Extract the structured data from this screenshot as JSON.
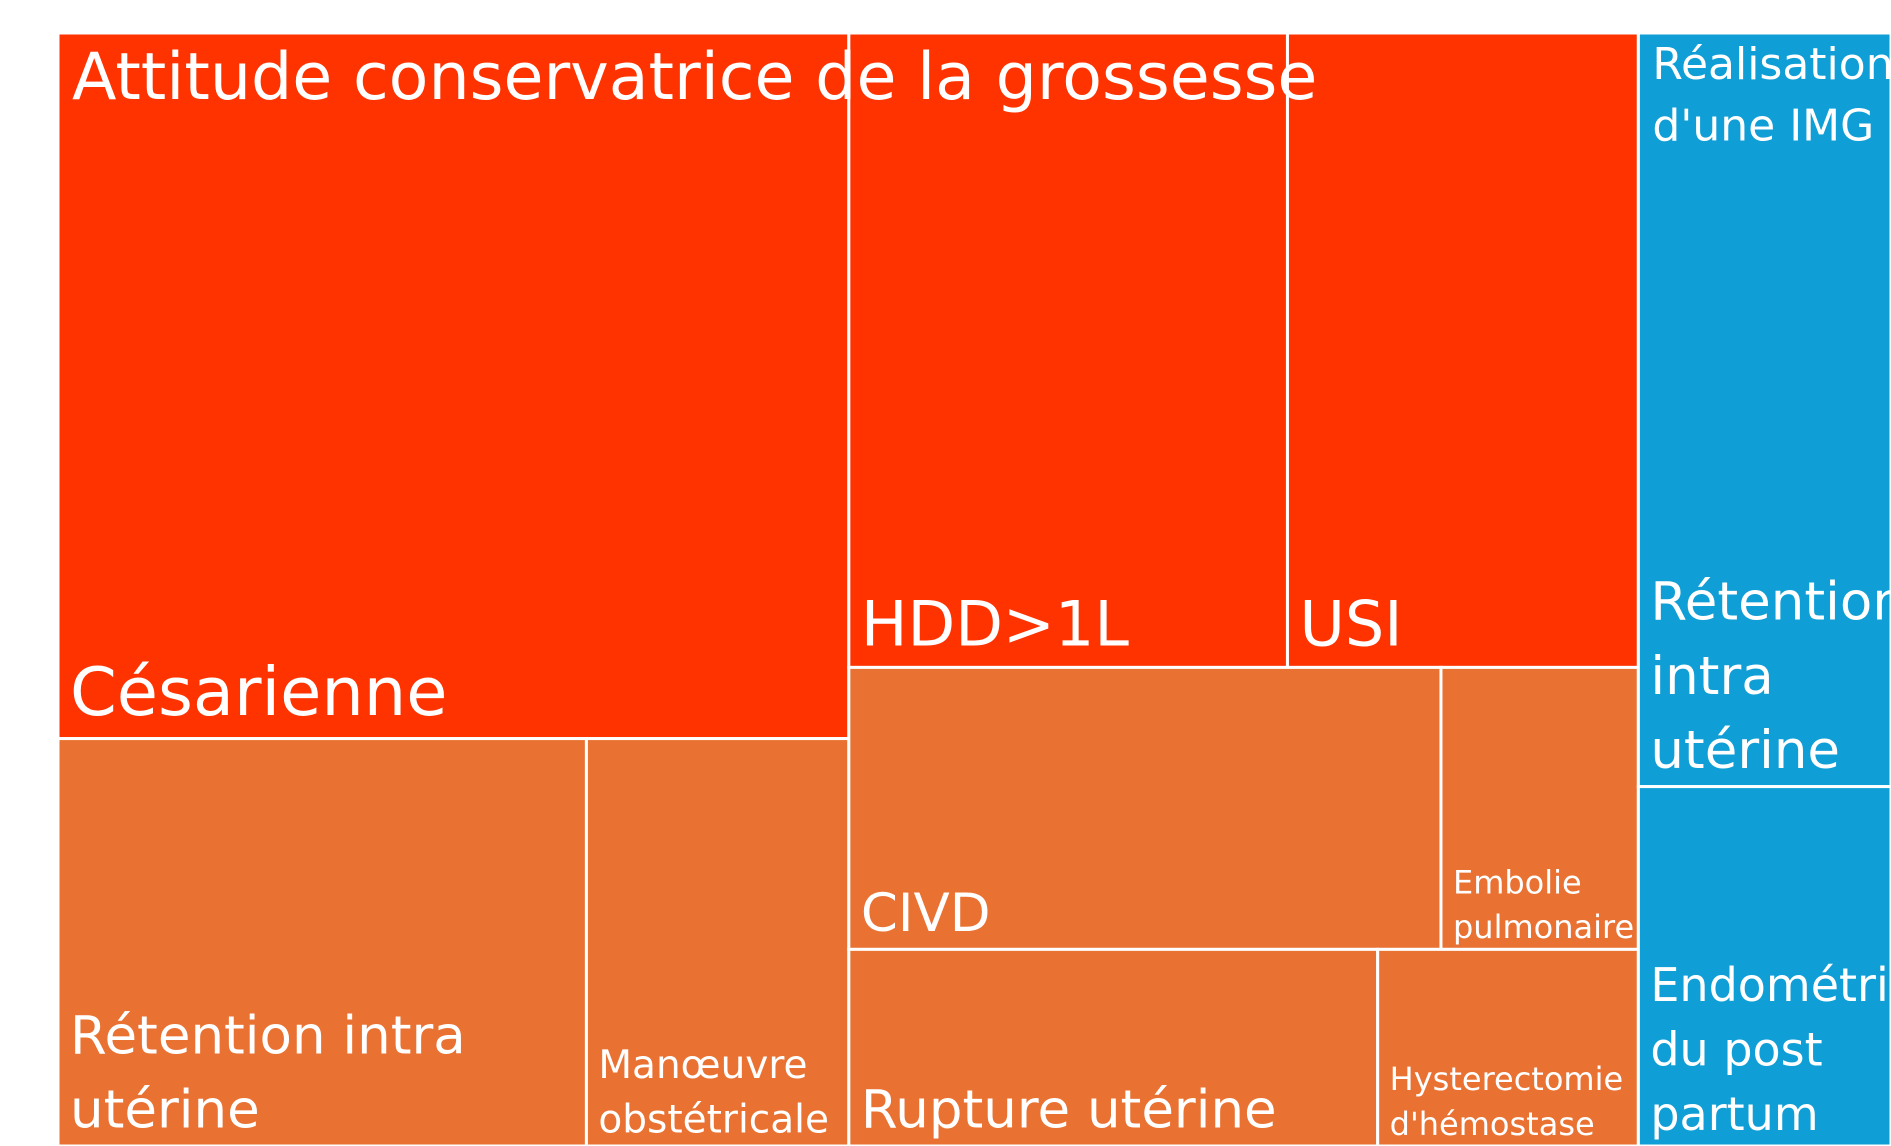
{
  "chart_data": {
    "type": "treemap",
    "groups": [
      {
        "name": "Attitude conservatrice de la grossesse",
        "color": "#ff3300",
        "children": [
          {
            "name": "Césarienne",
            "value": 381
          },
          {
            "name": "HDD>1L",
            "value": 190
          },
          {
            "name": "USI",
            "value": 152
          }
        ]
      },
      {
        "color": "#e97132",
        "children": [
          {
            "name": "Rétention intra utérine",
            "value": 147
          },
          {
            "name": "Manœuvre obstétricale",
            "value": 73
          },
          {
            "name": "CIVD",
            "value": 114
          },
          {
            "name": "Embolie pulmonaire",
            "value": 38
          },
          {
            "name": "Rupture utérine",
            "value": 71
          },
          {
            "name": "Hysterectomie d'hémostase",
            "value": 35
          }
        ]
      },
      {
        "name": "Réalisation d'une IMG",
        "color": "#0f9ed5",
        "children": [
          {
            "name": "Rétention intra utérine",
            "value": 130
          },
          {
            "name": "Endométrite du post partum",
            "value": 62
          }
        ]
      }
    ]
  }
}
